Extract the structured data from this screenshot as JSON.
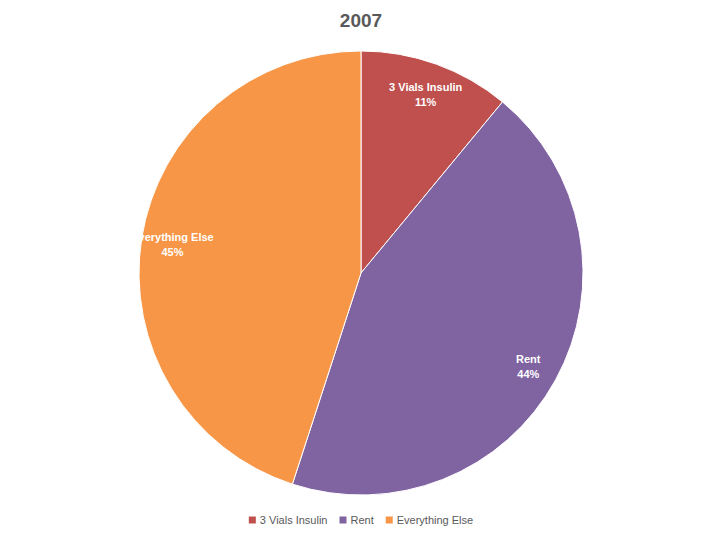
{
  "chart_data": {
    "type": "pie",
    "title": "2007",
    "categories": [
      "3 Vials Insulin",
      "Rent",
      "Everything Else"
    ],
    "values": [
      11,
      44,
      45
    ],
    "value_labels": [
      "11%",
      "44%",
      "45%"
    ],
    "colors": [
      "#c0504d",
      "#8064a2",
      "#f79646"
    ],
    "data_labels": true,
    "legend": "bottom"
  }
}
